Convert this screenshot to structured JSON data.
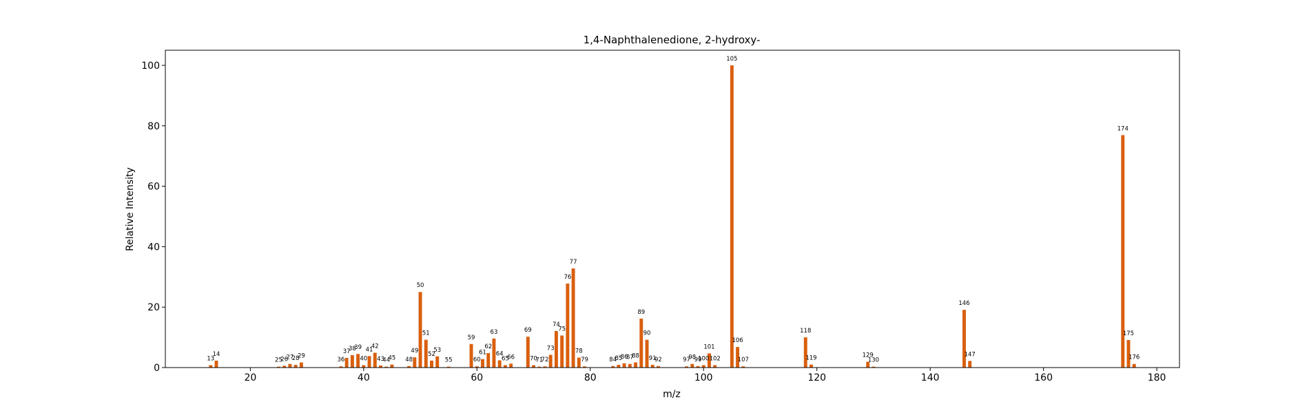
{
  "chart_data": {
    "type": "bar",
    "title": "1,4-Naphthalenedione, 2-hydroxy-",
    "xlabel": "m/z",
    "ylabel": "Relative Intensity",
    "xlim": [
      5,
      184
    ],
    "ylim": [
      0,
      105
    ],
    "xticks": [
      20,
      40,
      60,
      80,
      100,
      120,
      140,
      160,
      180
    ],
    "yticks": [
      0,
      20,
      40,
      60,
      80,
      100
    ],
    "grid": false,
    "bar_color": "#d95f0e",
    "x": [
      13,
      14,
      25,
      26,
      27,
      28,
      29,
      36,
      37,
      38,
      39,
      40,
      41,
      42,
      43,
      44,
      45,
      48,
      49,
      50,
      51,
      52,
      53,
      55,
      59,
      60,
      61,
      62,
      63,
      64,
      65,
      66,
      69,
      70,
      71,
      72,
      73,
      74,
      75,
      76,
      77,
      78,
      79,
      84,
      85,
      86,
      87,
      88,
      89,
      90,
      91,
      92,
      97,
      98,
      99,
      100,
      101,
      102,
      105,
      106,
      107,
      118,
      119,
      129,
      130,
      146,
      147,
      174,
      175,
      176
    ],
    "values": [
      0.8,
      2.3,
      0.3,
      0.6,
      1.2,
      0.9,
      1.7,
      0.4,
      3.2,
      4.1,
      4.5,
      0.8,
      3.8,
      4.9,
      0.7,
      0.3,
      1.0,
      0.5,
      3.4,
      25.0,
      9.2,
      2.3,
      3.7,
      0.3,
      7.8,
      0.4,
      2.8,
      4.8,
      9.6,
      2.4,
      0.8,
      1.3,
      10.2,
      0.8,
      0.3,
      0.4,
      4.2,
      12.1,
      10.6,
      27.8,
      32.8,
      3.3,
      0.4,
      0.5,
      0.9,
      1.4,
      1.2,
      1.7,
      16.2,
      9.2,
      0.9,
      0.5,
      0.4,
      1.2,
      0.5,
      0.8,
      4.7,
      0.8,
      100.0,
      6.8,
      0.4,
      10.0,
      1.0,
      1.9,
      0.3,
      19.1,
      2.2,
      76.9,
      9.1,
      1.2
    ]
  }
}
